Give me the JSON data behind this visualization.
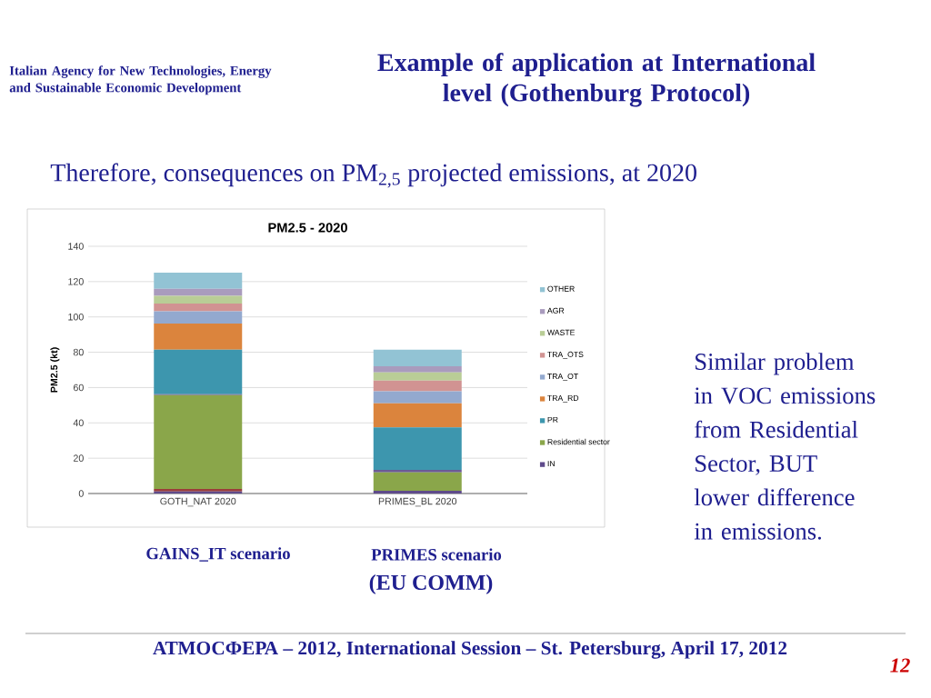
{
  "chart_data": {
    "type": "bar",
    "stacked": true,
    "title": "PM2.5 - 2020",
    "ylabel": "PM2.5 (kt)",
    "categories": [
      "GOTH_NAT 2020",
      "PRIMES_BL 2020"
    ],
    "ylim": [
      0,
      140
    ],
    "yticks": [
      0,
      20,
      40,
      60,
      80,
      100,
      120,
      140
    ],
    "grid": "y",
    "legend": "right",
    "series": [
      {
        "name": "IN",
        "color": "#5f4b8b",
        "values": [
          1.2,
          1.5
        ]
      },
      {
        "color": "#9b3d3a",
        "values": [
          1.4,
          null
        ]
      },
      {
        "name": "Residential sector",
        "color": "#8aa64a",
        "values": [
          53.1,
          10.5
        ]
      },
      {
        "color": "#6b5b95",
        "values": [
          0.5,
          1.4
        ]
      },
      {
        "name": "PR",
        "color": "#3d96ae",
        "values": [
          25.2,
          24.0
        ]
      },
      {
        "name": "TRA_RD",
        "color": "#db843d",
        "values": [
          14.9,
          13.7
        ]
      },
      {
        "name": "TRA_OT",
        "color": "#93a9cf",
        "values": [
          6.9,
          6.8
        ]
      },
      {
        "name": "TRA_OTS",
        "color": "#d19392",
        "values": [
          4.4,
          6.0
        ]
      },
      {
        "name": "WASTE",
        "color": "#b9cd96",
        "values": [
          4.3,
          4.7
        ]
      },
      {
        "name": "AGR",
        "color": "#a99bbd",
        "values": [
          4.0,
          3.4
        ]
      },
      {
        "name": "OTHER",
        "color": "#92c3d4",
        "values": [
          9.2,
          9.4
        ]
      }
    ],
    "annotations": [
      "Italian Agency for New Technologies, Energy and Sustainable Economic Development",
      "Example of application at International level (Gothenburg Protocol)",
      "Therefore, consequences on PM$_{2,5}$ projected emissions, at 2020",
      "GAINS_IT scenario",
      "PRIMES scenario",
      "(EU COMM)",
      "Similar problem in VOC emissions from Residential Sector, BUT lower difference in emissions.",
      "АТМОСФЕРА – 2012, International Session – St. Petersburg, April 17, 2012",
      "12"
    ]
  }
}
